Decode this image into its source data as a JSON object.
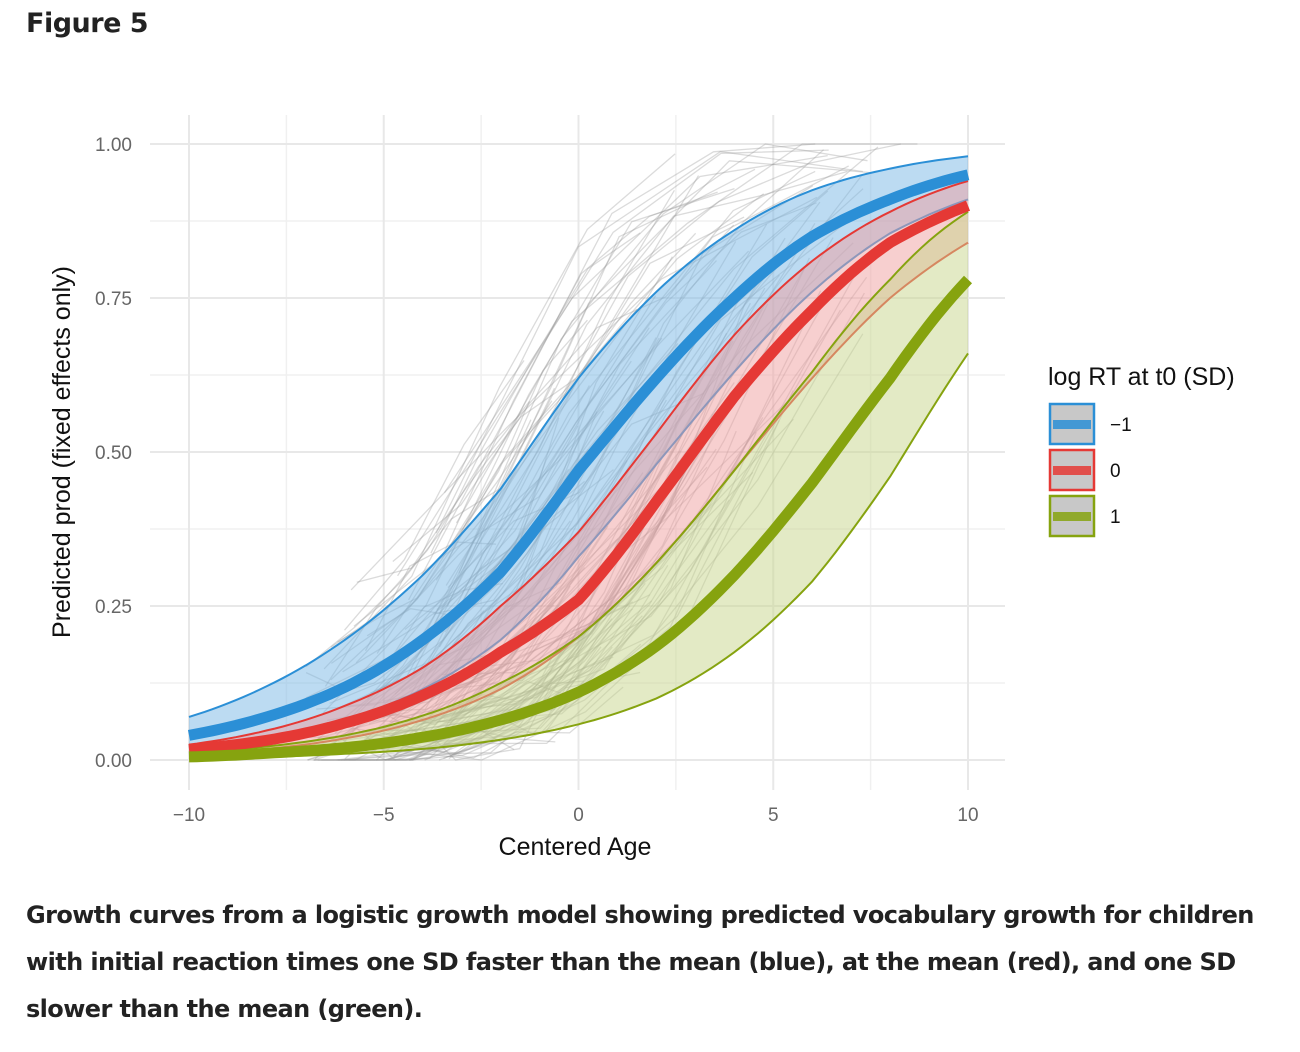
{
  "figure": {
    "label": "Figure 5",
    "caption": "Growth curves from a logistic growth model showing predicted vocabulary growth for children with initial reaction times one SD faster than the mean (blue), at the mean (red), and one SD slower than the mean (green)."
  },
  "chart_data": {
    "type": "line",
    "title": "",
    "xlabel": "Centered Age",
    "ylabel": "Predicted prod (fixed effects only)",
    "xlim": [
      -10,
      10
    ],
    "ylim": [
      0,
      1
    ],
    "x_ticks": [
      -10,
      -5,
      0,
      5,
      10
    ],
    "x_tick_labels": [
      "−10",
      "−5",
      "0",
      "5",
      "10"
    ],
    "y_ticks": [
      0,
      0.25,
      0.5,
      0.75,
      1
    ],
    "y_tick_labels": [
      "0.00",
      "0.25",
      "0.50",
      "0.75",
      "1.00"
    ],
    "grid": true,
    "legend": {
      "title": "log RT at t0 (SD)",
      "placement": "right",
      "entries": [
        "−1",
        "0",
        "1"
      ]
    },
    "series": [
      {
        "name": "−1",
        "color": "#2b8fd6",
        "band_fill": "#7ab8e6",
        "x": [
          -10,
          -8,
          -6,
          -4,
          -2,
          0,
          2,
          4,
          6,
          8,
          10
        ],
        "mean": [
          0.04,
          0.07,
          0.118,
          0.195,
          0.305,
          0.47,
          0.62,
          0.75,
          0.85,
          0.91,
          0.95
        ],
        "lower": [
          0.02,
          0.036,
          0.065,
          0.115,
          0.195,
          0.33,
          0.48,
          0.63,
          0.76,
          0.855,
          0.91
        ],
        "upper": [
          0.07,
          0.12,
          0.195,
          0.3,
          0.44,
          0.62,
          0.76,
          0.86,
          0.925,
          0.96,
          0.98
        ]
      },
      {
        "name": "0",
        "color": "#e53935",
        "band_fill": "#f0a0a0",
        "x": [
          -10,
          -8,
          -6,
          -4,
          -2,
          0,
          2,
          4,
          6,
          8,
          10
        ],
        "mean": [
          0.017,
          0.032,
          0.06,
          0.105,
          0.175,
          0.26,
          0.42,
          0.59,
          0.73,
          0.84,
          0.9
        ],
        "lower": [
          0.01,
          0.018,
          0.035,
          0.065,
          0.115,
          0.2,
          0.32,
          0.47,
          0.62,
          0.75,
          0.84
        ],
        "upper": [
          0.025,
          0.048,
          0.088,
          0.15,
          0.25,
          0.37,
          0.53,
          0.69,
          0.81,
          0.89,
          0.94
        ]
      },
      {
        "name": "1",
        "color": "#86a30f",
        "band_fill": "#c8d68c",
        "x": [
          -10,
          -8,
          -6,
          -4,
          -2,
          0,
          2,
          4,
          6,
          8,
          10
        ],
        "mean": [
          0.005,
          0.011,
          0.02,
          0.037,
          0.065,
          0.11,
          0.185,
          0.3,
          0.45,
          0.62,
          0.78
        ],
        "lower": [
          0.002,
          0.005,
          0.01,
          0.018,
          0.033,
          0.058,
          0.1,
          0.175,
          0.29,
          0.46,
          0.66
        ],
        "upper": [
          0.012,
          0.022,
          0.04,
          0.072,
          0.125,
          0.2,
          0.32,
          0.47,
          0.63,
          0.78,
          0.89
        ]
      }
    ],
    "background_trajectories": {
      "description": "individual child trajectories (thin grey lines)",
      "color": "#999999",
      "count_approx": 150,
      "x_range": [
        -7,
        9
      ]
    }
  }
}
